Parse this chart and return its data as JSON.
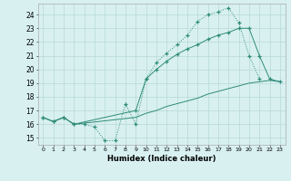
{
  "line1_x": [
    0,
    1,
    2,
    3,
    4,
    5,
    6,
    7,
    8,
    9,
    10,
    11,
    12,
    13,
    14,
    15,
    16,
    17,
    18,
    19,
    20,
    21
  ],
  "line1_y": [
    16.5,
    16.2,
    16.5,
    16.0,
    16.0,
    15.8,
    14.8,
    14.8,
    17.5,
    16.0,
    19.3,
    20.5,
    21.2,
    21.8,
    22.5,
    23.5,
    24.0,
    24.2,
    24.5,
    23.4,
    21.0,
    19.3
  ],
  "line2_x": [
    0,
    1,
    2,
    3,
    9,
    10,
    11,
    12,
    13,
    14,
    15,
    16,
    17,
    18,
    19,
    20,
    21,
    22,
    23
  ],
  "line2_y": [
    16.5,
    16.2,
    16.5,
    16.0,
    17.0,
    19.3,
    20.0,
    20.6,
    21.1,
    21.5,
    21.8,
    22.2,
    22.5,
    22.7,
    23.0,
    23.0,
    21.0,
    19.3,
    19.1
  ],
  "line3_x": [
    0,
    1,
    2,
    3,
    9,
    10,
    11,
    12,
    13,
    14,
    15,
    16,
    17,
    18,
    19,
    20,
    21,
    22,
    23
  ],
  "line3_y": [
    16.5,
    16.2,
    16.5,
    16.0,
    16.5,
    16.8,
    17.0,
    17.3,
    17.5,
    17.7,
    17.9,
    18.2,
    18.4,
    18.6,
    18.8,
    19.0,
    19.1,
    19.2,
    19.1
  ],
  "color": "#2e8b78",
  "bg_color": "#d8f0f0",
  "grid_color": "#b8d8d8",
  "xlabel": "Humidex (Indice chaleur)",
  "xlim": [
    -0.5,
    23.5
  ],
  "ylim": [
    14.5,
    24.8
  ],
  "xticks": [
    0,
    1,
    2,
    3,
    4,
    5,
    6,
    7,
    8,
    9,
    10,
    11,
    12,
    13,
    14,
    15,
    16,
    17,
    18,
    19,
    20,
    21,
    22,
    23
  ],
  "yticks": [
    15,
    16,
    17,
    18,
    19,
    20,
    21,
    22,
    23,
    24
  ]
}
